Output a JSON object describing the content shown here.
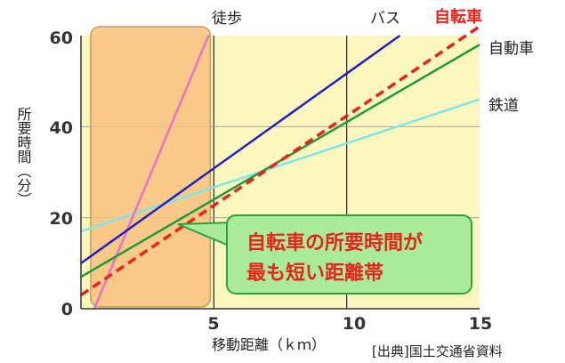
{
  "chart_data": {
    "type": "line",
    "xlabel": "移動距離（ｋｍ）",
    "ylabel": "所要時間（分）",
    "xlim": [
      0,
      15
    ],
    "ylim": [
      0,
      60
    ],
    "x_ticks": [
      "5",
      "10",
      "15"
    ],
    "y_ticks": [
      "0",
      "20",
      "40",
      "60"
    ],
    "grid": true,
    "highlight_range_x": [
      0.5,
      5
    ],
    "series": [
      {
        "name": "徒歩",
        "color": "#ef6fc4",
        "dash": false,
        "x": [
          0.5,
          4.8
        ],
        "y": [
          0,
          60
        ]
      },
      {
        "name": "バス",
        "color": "#2020c0",
        "dash": false,
        "x": [
          0,
          12
        ],
        "y": [
          10,
          60
        ]
      },
      {
        "name": "自転車",
        "color": "#e8231b",
        "dash": true,
        "x": [
          0,
          15
        ],
        "y": [
          3,
          62
        ]
      },
      {
        "name": "自動車",
        "color": "#1e9a3c",
        "dash": false,
        "x": [
          0,
          15
        ],
        "y": [
          7,
          58
        ]
      },
      {
        "name": "鉄道",
        "color": "#7fe6e6",
        "dash": false,
        "x": [
          0,
          15
        ],
        "y": [
          17,
          46
        ]
      }
    ],
    "annotation": {
      "line1": "自転車の所要時間が",
      "line2": "最も短い距離帯"
    },
    "source": "[出典]国土交通省資料"
  },
  "colors": {
    "plot_bg": "#fcf6bf",
    "highlight_fill": "#f8c27c",
    "highlight_stroke": "#c99a5c",
    "callout_fill": "#a8ec9a",
    "callout_stroke": "#2fa040"
  }
}
